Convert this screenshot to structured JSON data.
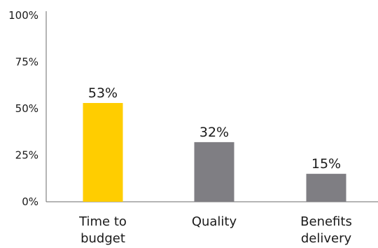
{
  "chart_data": {
    "type": "bar",
    "categories": [
      "Time to budget",
      "Quality",
      "Benefits delivery"
    ],
    "category_lines": [
      [
        "Time to",
        "budget"
      ],
      [
        "Quality"
      ],
      [
        "Benefits",
        "delivery"
      ]
    ],
    "values": [
      53,
      32,
      15
    ],
    "data_labels": [
      "53%",
      "32%",
      "15%"
    ],
    "colors": [
      "#ffcd00",
      "#7f7e83",
      "#7f7e83"
    ],
    "ylim": [
      0,
      100
    ],
    "yticks": [
      0,
      25,
      50,
      75,
      100
    ],
    "ytick_labels": [
      "0%",
      "25%",
      "50%",
      "75%",
      "100%"
    ],
    "title": "",
    "xlabel": "",
    "ylabel": "",
    "grid": false,
    "legend": "none"
  }
}
